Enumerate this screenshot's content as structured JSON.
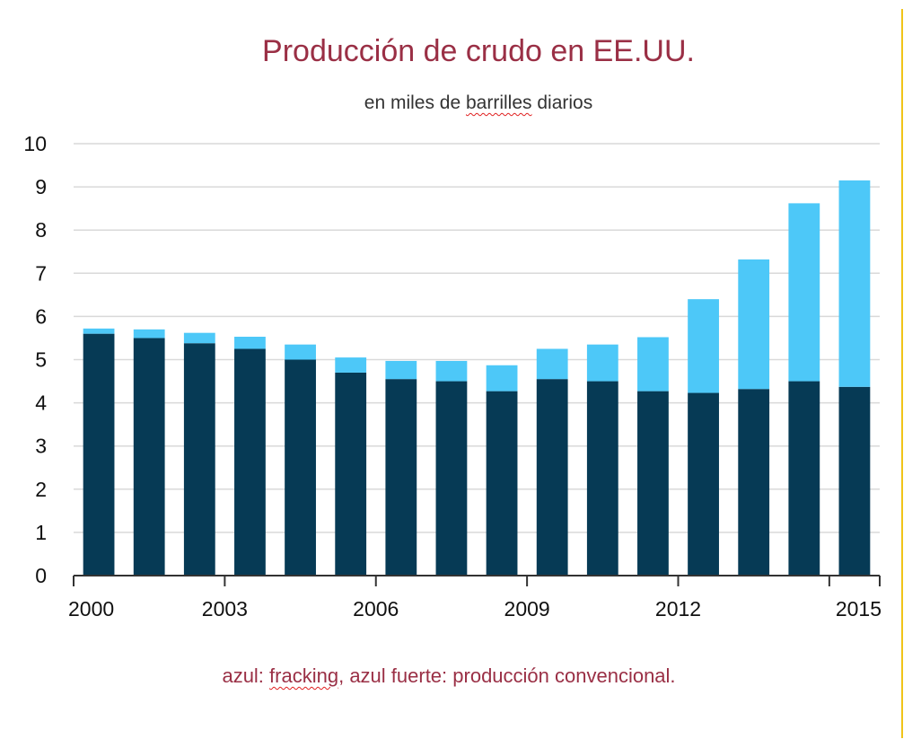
{
  "chart_data": {
    "type": "bar",
    "stacked": true,
    "title": "Producción de crudo en EE.UU.",
    "subtitle": "en miles de barrilles diarios",
    "subtitle_parts": [
      "en miles de ",
      "barrilles",
      " diarios"
    ],
    "footnote": "azul: fracking, azul fuerte: producción convencional.",
    "footnote_parts": [
      "azul: ",
      "fracking",
      ", azul fuerte: producción convencional."
    ],
    "categories": [
      "2000",
      "2001",
      "2002",
      "2003",
      "2004",
      "2005",
      "2006",
      "2007",
      "2008",
      "2009",
      "2010",
      "2011",
      "2012",
      "2013",
      "2014",
      "2015"
    ],
    "x_tick_labels": [
      "2000",
      "2003",
      "2006",
      "2009",
      "2012",
      "2015"
    ],
    "y_tick_labels": [
      "0",
      "1",
      "2",
      "3",
      "4",
      "5",
      "6",
      "7",
      "8",
      "9",
      "10"
    ],
    "ylim": [
      0,
      10
    ],
    "grid": true,
    "series": [
      {
        "values": [
          5.6,
          5.5,
          5.38,
          5.25,
          5.0,
          4.7,
          4.55,
          4.5,
          4.27,
          4.55,
          4.5,
          4.27,
          4.23,
          4.32,
          4.5,
          4.37
        ],
        "color": "#063a55"
      },
      {
        "values": [
          0.12,
          0.2,
          0.24,
          0.28,
          0.35,
          0.35,
          0.42,
          0.47,
          0.6,
          0.7,
          0.85,
          1.25,
          2.17,
          3.0,
          4.12,
          4.78
        ],
        "color": "#4dc8f8"
      }
    ]
  },
  "colors": {
    "title": "#9a2f45",
    "grid": "#d9d9d9",
    "axis": "#333333",
    "accent_rule": "#f0c419"
  }
}
